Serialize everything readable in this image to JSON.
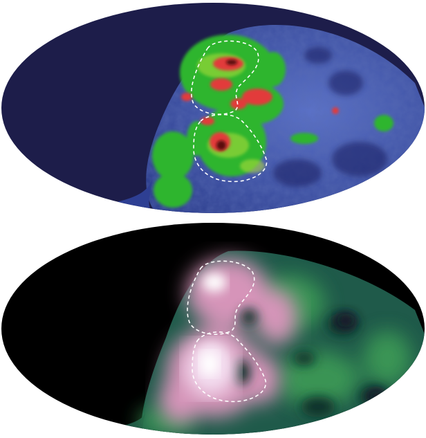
{
  "figure": {
    "panels": [
      {
        "id": "top",
        "description_hidden": true
      },
      {
        "id": "bottom",
        "description_hidden": true
      }
    ],
    "colors": {
      "top_background": "#1d1d4a",
      "top_base_blue": "#3a4fa6",
      "top_green": "#2fbf2f",
      "top_red": "#e23a3a",
      "bottom_background": "#000000",
      "bottom_base": "#1f5a4a",
      "bottom_pink": "#e6a3cf",
      "bottom_white": "#ffffff",
      "outline": "#ffffff"
    }
  }
}
